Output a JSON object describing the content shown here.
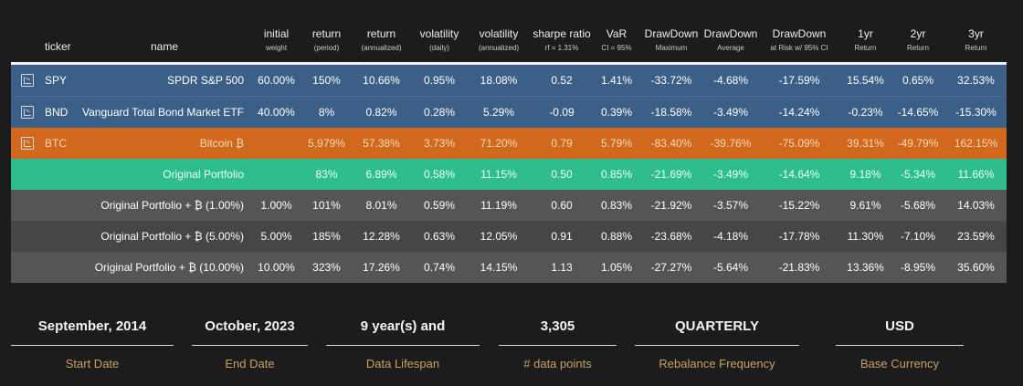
{
  "table": {
    "headers": [
      {
        "title": "",
        "sub": ""
      },
      {
        "title": "ticker",
        "sub": ""
      },
      {
        "title": "name",
        "sub": ""
      },
      {
        "title": "initial",
        "sub": "weight"
      },
      {
        "title": "return",
        "sub": "(period)"
      },
      {
        "title": "return",
        "sub": "(annualized)"
      },
      {
        "title": "volatility",
        "sub": "(daily)"
      },
      {
        "title": "volatility",
        "sub": "(annualized)"
      },
      {
        "title": "sharpe ratio",
        "sub": "rf = 1.31%"
      },
      {
        "title": "VaR",
        "sub": "CI = 95%"
      },
      {
        "title": "DrawDown",
        "sub": "Maximum"
      },
      {
        "title": "DrawDown",
        "sub": "Average"
      },
      {
        "title": "DrawDown",
        "sub": "at Risk w/ 95% CI"
      },
      {
        "title": "1yr",
        "sub": "Return"
      },
      {
        "title": "2yr",
        "sub": "Return"
      },
      {
        "title": "3yr",
        "sub": "Return"
      }
    ],
    "rows": [
      {
        "style": "blue",
        "icon": "chart-icon",
        "ticker": "SPY",
        "name": "SPDR S&P 500",
        "cells": [
          "60.00%",
          "150%",
          "10.66%",
          "0.95%",
          "18.08%",
          "0.52",
          "1.41%",
          "-33.72%",
          "-4.68%",
          "-17.59%",
          "15.54%",
          "0.65%",
          "32.53%"
        ]
      },
      {
        "style": "blue",
        "icon": "chart-icon",
        "ticker": "BND",
        "name": "Vanguard Total Bond Market ETF",
        "cells": [
          "40.00%",
          "8%",
          "0.82%",
          "0.28%",
          "5.29%",
          "-0.09",
          "0.39%",
          "-18.58%",
          "-3.49%",
          "-14.24%",
          "-0.23%",
          "-14.65%",
          "-15.30%"
        ]
      },
      {
        "style": "orange",
        "icon": "chart-icon",
        "ticker": "BTC",
        "name": "Bitcoin ₿",
        "cells": [
          "",
          "5,979%",
          "57.38%",
          "3.73%",
          "71.20%",
          "0.79",
          "5.79%",
          "-83.40%",
          "-39.76%",
          "-75.09%",
          "39.31%",
          "-49.79%",
          "162.15%"
        ]
      },
      {
        "style": "green",
        "icon": "",
        "ticker": "",
        "name": "Original Portfolio",
        "cells": [
          "",
          "83%",
          "6.89%",
          "0.58%",
          "11.15%",
          "0.50",
          "0.85%",
          "-21.69%",
          "-3.49%",
          "-14.64%",
          "9.18%",
          "-5.34%",
          "11.66%"
        ]
      },
      {
        "style": "gray1",
        "icon": "",
        "ticker": "",
        "name": "Original Portfolio + ₿ (1.00%)",
        "cells": [
          "1.00%",
          "101%",
          "8.01%",
          "0.59%",
          "11.19%",
          "0.60",
          "0.83%",
          "-21.92%",
          "-3.57%",
          "-15.22%",
          "9.61%",
          "-5.68%",
          "14.03%"
        ]
      },
      {
        "style": "gray2",
        "icon": "",
        "ticker": "",
        "name": "Original Portfolio + ₿ (5.00%)",
        "cells": [
          "5.00%",
          "185%",
          "12.28%",
          "0.63%",
          "12.05%",
          "0.91",
          "0.88%",
          "-23.68%",
          "-4.18%",
          "-17.78%",
          "11.30%",
          "-7.10%",
          "23.59%"
        ]
      },
      {
        "style": "gray3",
        "icon": "",
        "ticker": "",
        "name": "Original Portfolio + ₿ (10.00%)",
        "cells": [
          "10.00%",
          "323%",
          "17.26%",
          "0.74%",
          "14.15%",
          "1.13",
          "1.05%",
          "-27.27%",
          "-5.64%",
          "-21.83%",
          "13.36%",
          "-8.95%",
          "35.60%"
        ]
      }
    ]
  },
  "stats": [
    {
      "value": "September, 2014",
      "label": "Start Date"
    },
    {
      "value": "October, 2023",
      "label": "End Date"
    },
    {
      "value": "9 year(s) and",
      "label": "Data Lifespan"
    },
    {
      "value": "3,305",
      "label": "# data points"
    },
    {
      "value": "QUARTERLY",
      "label": "Rebalance Frequency"
    },
    {
      "value": "USD",
      "label": "Base Currency"
    }
  ],
  "colors": {
    "background": "#1c1c1c",
    "asset_row": "#3b5f86",
    "bitcoin_row": "#d0691e",
    "portfolio_row": "#2ebd8c",
    "variant_row": "#555555",
    "stat_label": "#c9a063"
  }
}
